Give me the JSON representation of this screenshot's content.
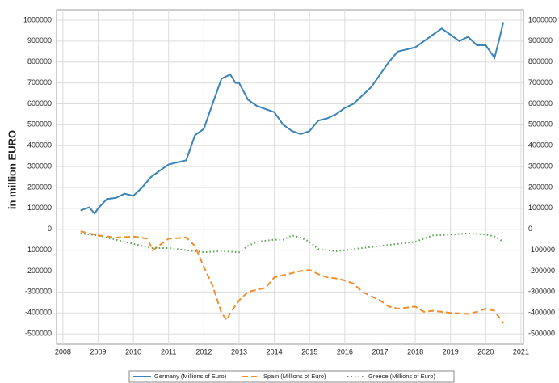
{
  "chart_data": {
    "type": "line",
    "y_label": "in million EURO",
    "xlim": [
      2007.82,
      2021.07
    ],
    "xticks": [
      2008,
      2009,
      2010,
      2011,
      2012,
      2013,
      2014,
      2015,
      2016,
      2017,
      2018,
      2019,
      2020,
      2021
    ],
    "ylim": [
      -550000,
      1050000
    ],
    "yticks": [
      -500000,
      -400000,
      -300000,
      -200000,
      -100000,
      0,
      100000,
      200000,
      300000,
      400000,
      500000,
      600000,
      700000,
      800000,
      900000,
      1000000
    ],
    "grid": true,
    "legend": "bottom",
    "series": [
      {
        "name": "Germany (Millions of Euro)",
        "color": "#3a84b8",
        "dash": "solid",
        "x": [
          2008.5,
          2008.75,
          2008.9,
          2009.0,
          2009.25,
          2009.5,
          2009.75,
          2010.0,
          2010.25,
          2010.5,
          2010.75,
          2011.0,
          2011.25,
          2011.5,
          2011.75,
          2012.0,
          2012.25,
          2012.5,
          2012.75,
          2012.9,
          2013.0,
          2013.25,
          2013.5,
          2013.75,
          2014.0,
          2014.25,
          2014.5,
          2014.75,
          2015.0,
          2015.25,
          2015.5,
          2015.75,
          2016.0,
          2016.25,
          2016.5,
          2016.75,
          2017.0,
          2017.25,
          2017.5,
          2017.75,
          2018.0,
          2018.25,
          2018.5,
          2018.75,
          2019.0,
          2019.25,
          2019.5,
          2019.75,
          2020.0,
          2020.25,
          2020.4,
          2020.5
        ],
        "values": [
          90000,
          105000,
          75000,
          100000,
          145000,
          150000,
          170000,
          160000,
          200000,
          250000,
          280000,
          310000,
          320000,
          330000,
          450000,
          480000,
          600000,
          720000,
          740000,
          700000,
          700000,
          620000,
          590000,
          575000,
          560000,
          500000,
          470000,
          455000,
          470000,
          520000,
          530000,
          550000,
          580000,
          600000,
          640000,
          680000,
          740000,
          800000,
          850000,
          860000,
          870000,
          900000,
          930000,
          960000,
          930000,
          900000,
          920000,
          880000,
          880000,
          820000,
          920000,
          990000
        ]
      },
      {
        "name": "Spain (Millions of Euro)",
        "color": "#f28e2b",
        "dash": "dashed",
        "x": [
          2008.5,
          2009.0,
          2009.5,
          2010.0,
          2010.4,
          2010.55,
          2011.0,
          2011.5,
          2011.75,
          2012.0,
          2012.25,
          2012.5,
          2012.65,
          2012.75,
          2013.0,
          2013.25,
          2013.5,
          2013.75,
          2014.0,
          2014.25,
          2014.5,
          2014.75,
          2015.0,
          2015.25,
          2015.5,
          2015.75,
          2016.0,
          2016.25,
          2016.5,
          2016.75,
          2017.0,
          2017.25,
          2017.5,
          2017.75,
          2018.0,
          2018.25,
          2018.5,
          2018.75,
          2019.0,
          2019.5,
          2019.75,
          2020.0,
          2020.25,
          2020.5
        ],
        "values": [
          -10000,
          -30000,
          -40000,
          -35000,
          -45000,
          -100000,
          -45000,
          -40000,
          -80000,
          -180000,
          -270000,
          -400000,
          -435000,
          -400000,
          -340000,
          -300000,
          -290000,
          -280000,
          -230000,
          -220000,
          -210000,
          -200000,
          -195000,
          -215000,
          -230000,
          -235000,
          -245000,
          -260000,
          -300000,
          -320000,
          -340000,
          -370000,
          -380000,
          -375000,
          -370000,
          -395000,
          -390000,
          -395000,
          -400000,
          -405000,
          -395000,
          -380000,
          -390000,
          -450000
        ]
      },
      {
        "name": "Greece (Millions of Euro)",
        "color": "#59a14f",
        "dash": "dotted",
        "x": [
          2008.5,
          2009.0,
          2009.5,
          2010.0,
          2010.5,
          2011.0,
          2011.5,
          2012.0,
          2012.5,
          2013.0,
          2013.25,
          2013.5,
          2014.0,
          2014.25,
          2014.5,
          2014.75,
          2015.0,
          2015.25,
          2015.75,
          2016.0,
          2016.5,
          2017.0,
          2017.5,
          2018.0,
          2018.5,
          2019.0,
          2019.5,
          2020.0,
          2020.25,
          2020.5
        ],
        "values": [
          -20000,
          -30000,
          -50000,
          -70000,
          -90000,
          -90000,
          -100000,
          -110000,
          -105000,
          -110000,
          -80000,
          -60000,
          -50000,
          -50000,
          -30000,
          -40000,
          -60000,
          -95000,
          -105000,
          -100000,
          -90000,
          -80000,
          -70000,
          -60000,
          -30000,
          -25000,
          -20000,
          -25000,
          -35000,
          -60000
        ]
      }
    ]
  }
}
